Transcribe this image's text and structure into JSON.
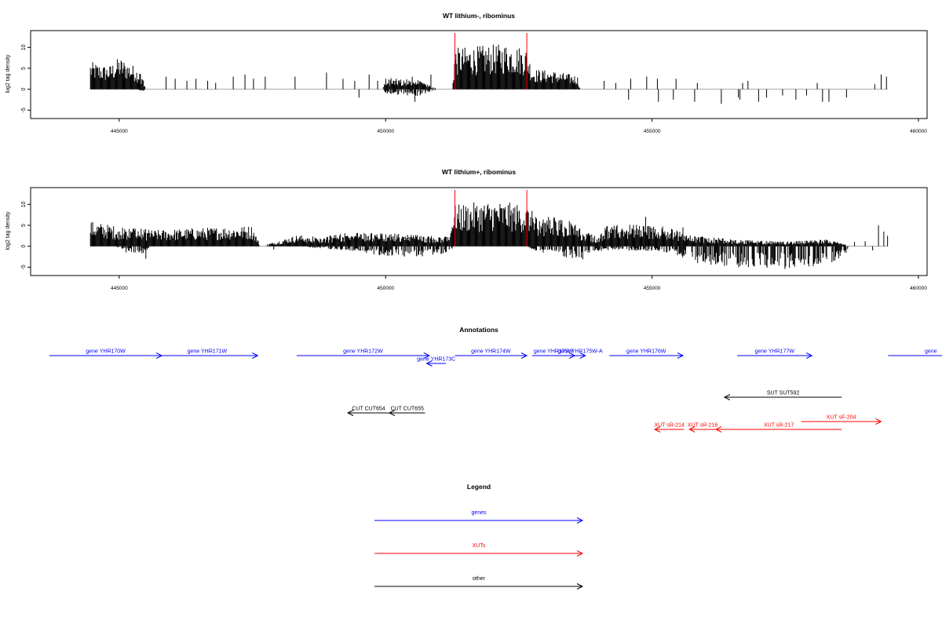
{
  "chart_data": [
    {
      "type": "bar",
      "title": "WT lithium-, ribominus",
      "ylabel": "log2 tag density",
      "xlim": [
        444000,
        460000
      ],
      "ylim": [
        -7,
        14
      ],
      "x_ticks": [
        {
          "value": 445000,
          "label": "445000"
        },
        {
          "value": 450000,
          "label": "450000"
        },
        {
          "value": 455000,
          "label": "455000"
        },
        {
          "value": 460000,
          "label": "460000"
        }
      ],
      "y_ticks": [
        {
          "value": -5,
          "label": "-5"
        },
        {
          "value": 0,
          "label": "0"
        },
        {
          "value": 5,
          "label": "5"
        },
        {
          "value": 10,
          "label": "10"
        }
      ],
      "marker_lines": [
        451300,
        452650
      ],
      "density_profile": [
        {
          "x": 444460,
          "pos": 6.0,
          "neg": 0
        },
        {
          "x": 444800,
          "pos": 5.0,
          "neg": 0
        },
        {
          "x": 445000,
          "pos": 7.0,
          "neg": 0
        },
        {
          "x": 445300,
          "pos": 5.0,
          "neg": 0
        },
        {
          "x": 445450,
          "pos": 3.0,
          "neg": -0.5
        },
        {
          "x": 445500,
          "pos": 0,
          "neg": 0
        },
        {
          "x": 449950,
          "pos": 0,
          "neg": 0
        },
        {
          "x": 450000,
          "pos": 2.5,
          "neg": -1.0
        },
        {
          "x": 450600,
          "pos": 2.0,
          "neg": -1.5
        },
        {
          "x": 451000,
          "pos": 0,
          "neg": 0
        },
        {
          "x": 451250,
          "pos": 0,
          "neg": 0
        },
        {
          "x": 451300,
          "pos": 9.0,
          "neg": 0
        },
        {
          "x": 451800,
          "pos": 9.5,
          "neg": 0
        },
        {
          "x": 452300,
          "pos": 10.0,
          "neg": 0
        },
        {
          "x": 452650,
          "pos": 9.0,
          "neg": 0
        },
        {
          "x": 452750,
          "pos": 4.5,
          "neg": 0
        },
        {
          "x": 453150,
          "pos": 4.0,
          "neg": 0
        },
        {
          "x": 453600,
          "pos": 3.0,
          "neg": 0
        },
        {
          "x": 453650,
          "pos": 0,
          "neg": 0
        }
      ],
      "sparse_bars": [
        [
          445880,
          3.0
        ],
        [
          446050,
          2.5
        ],
        [
          446270,
          2.0
        ],
        [
          446440,
          2.5
        ],
        [
          446660,
          2.0
        ],
        [
          446810,
          1.5
        ],
        [
          447140,
          3.0
        ],
        [
          447360,
          3.5
        ],
        [
          447520,
          2.5
        ],
        [
          447740,
          3.0
        ],
        [
          448300,
          3.0
        ],
        [
          448890,
          4.0
        ],
        [
          449200,
          2.5
        ],
        [
          449420,
          2.0
        ],
        [
          449690,
          3.5
        ],
        [
          449850,
          2.0
        ],
        [
          450200,
          2.5
        ],
        [
          450500,
          3.0
        ],
        [
          450850,
          3.5
        ],
        [
          454100,
          2.0
        ],
        [
          454320,
          1.5
        ],
        [
          454600,
          2.5
        ],
        [
          454900,
          3.0
        ],
        [
          455100,
          2.5
        ],
        [
          455450,
          2.5
        ],
        [
          455850,
          1.5
        ],
        [
          456700,
          1.5
        ],
        [
          456800,
          2.0
        ],
        [
          458100,
          1.5
        ],
        [
          459300,
          3.5
        ],
        [
          459400,
          3.0
        ],
        [
          459180,
          1.2
        ],
        [
          450550,
          -3.0
        ],
        [
          454560,
          -2.5
        ],
        [
          455120,
          -3.0
        ],
        [
          455400,
          -2.5
        ],
        [
          455800,
          -3.0
        ],
        [
          456300,
          -3.5
        ],
        [
          456620,
          -2.0
        ],
        [
          456650,
          -2.5
        ],
        [
          457000,
          -3.0
        ],
        [
          457150,
          -2.0
        ],
        [
          457450,
          -1.5
        ],
        [
          457700,
          -2.5
        ],
        [
          457900,
          -1.5
        ],
        [
          458200,
          -3.0
        ],
        [
          458320,
          -3.0
        ],
        [
          458650,
          -2.0
        ],
        [
          449500,
          -2.0
        ]
      ]
    },
    {
      "type": "bar",
      "title": "WT lithium+, ribominus",
      "ylabel": "log2 tag density",
      "xlim": [
        444000,
        460000
      ],
      "ylim": [
        -7,
        14
      ],
      "x_ticks": [
        {
          "value": 445000,
          "label": "445000"
        },
        {
          "value": 450000,
          "label": "450000"
        },
        {
          "value": 455000,
          "label": "455000"
        },
        {
          "value": 460000,
          "label": "460000"
        }
      ],
      "y_ticks": [
        {
          "value": -5,
          "label": "-5"
        },
        {
          "value": 0,
          "label": "0"
        },
        {
          "value": 5,
          "label": "5"
        },
        {
          "value": 10,
          "label": "10"
        }
      ],
      "marker_lines": [
        451300,
        452650
      ],
      "density_profile": [
        {
          "x": 444460,
          "pos": 5.5,
          "neg": 0
        },
        {
          "x": 444900,
          "pos": 4.5,
          "neg": 0
        },
        {
          "x": 445400,
          "pos": 4.0,
          "neg": -2.0
        },
        {
          "x": 445600,
          "pos": 3.5,
          "neg": 0
        },
        {
          "x": 446500,
          "pos": 4.0,
          "neg": 0
        },
        {
          "x": 447500,
          "pos": 4.5,
          "neg": 0
        },
        {
          "x": 447650,
          "pos": 0,
          "neg": 0
        },
        {
          "x": 448350,
          "pos": 2.5,
          "neg": 0
        },
        {
          "x": 448800,
          "pos": 2.0,
          "neg": -0.5
        },
        {
          "x": 449300,
          "pos": 3.0,
          "neg": -1.0
        },
        {
          "x": 449900,
          "pos": 3.0,
          "neg": -2.0
        },
        {
          "x": 450600,
          "pos": 2.5,
          "neg": -2.5
        },
        {
          "x": 451200,
          "pos": 2.0,
          "neg": -1.5
        },
        {
          "x": 451300,
          "pos": 9.0,
          "neg": 0
        },
        {
          "x": 452000,
          "pos": 10.0,
          "neg": 0
        },
        {
          "x": 452650,
          "pos": 9.0,
          "neg": 0
        },
        {
          "x": 452800,
          "pos": 7.0,
          "neg": -1.0
        },
        {
          "x": 453400,
          "pos": 6.0,
          "neg": -2.5
        },
        {
          "x": 453700,
          "pos": 3.5,
          "neg": -3.0
        },
        {
          "x": 454000,
          "pos": 2.0,
          "neg": -1.0
        },
        {
          "x": 454150,
          "pos": 4.5,
          "neg": -1.0
        },
        {
          "x": 454800,
          "pos": 5.0,
          "neg": -1.0
        },
        {
          "x": 455400,
          "pos": 4.0,
          "neg": -1.5
        },
        {
          "x": 455700,
          "pos": 2.5,
          "neg": -3.5
        },
        {
          "x": 456500,
          "pos": 1.5,
          "neg": -4.5
        },
        {
          "x": 457500,
          "pos": 1.0,
          "neg": -5.0
        },
        {
          "x": 458300,
          "pos": 1.5,
          "neg": -4.0
        },
        {
          "x": 458600,
          "pos": 0.5,
          "neg": -2.5
        },
        {
          "x": 458700,
          "pos": 0,
          "neg": 0
        }
      ],
      "sparse_bars": [
        [
          445130,
          -1.5
        ],
        [
          445500,
          -3.0
        ],
        [
          447900,
          -0.8
        ],
        [
          459140,
          -1.0
        ],
        [
          459250,
          5.0
        ],
        [
          459350,
          3.5
        ],
        [
          459420,
          2.5
        ],
        [
          454880,
          7.0
        ],
        [
          455580,
          4.5
        ],
        [
          458800,
          1.0
        ],
        [
          459000,
          1.2
        ]
      ]
    }
  ],
  "annotations": {
    "title": "Annotations",
    "xlim": [
      444000,
      460000
    ],
    "tracks": [
      {
        "label": "gene YHR170W",
        "x0": 443690,
        "x1": 445800,
        "row": "gene",
        "dir": "right",
        "color": "#0000ff"
      },
      {
        "label": "gene YHR171W",
        "x0": 445700,
        "x1": 447600,
        "row": "gene",
        "dir": "right",
        "color": "#0000ff"
      },
      {
        "label": "gene YHR172W",
        "x0": 448330,
        "x1": 450820,
        "row": "gene",
        "dir": "right",
        "color": "#0000ff"
      },
      {
        "label": "gene YHR173C",
        "x0": 450770,
        "x1": 451130,
        "row": "gene-low",
        "dir": "left",
        "color": "#0000ff"
      },
      {
        "label": "gene YHR174W",
        "x0": 451300,
        "x1": 452650,
        "row": "gene",
        "dir": "right",
        "color": "#0000ff"
      },
      {
        "label": "gene YHR175W",
        "x0": 452750,
        "x1": 453550,
        "row": "gene",
        "dir": "right",
        "color": "#0000ff"
      },
      {
        "label": "gene YHR175W-A",
        "x0": 453550,
        "x1": 453750,
        "row": "gene",
        "dir": "right",
        "color": "#0000ff"
      },
      {
        "label": "gene YHR176W",
        "x0": 454200,
        "x1": 455580,
        "row": "gene",
        "dir": "right",
        "color": "#0000ff"
      },
      {
        "label": "gene YHR177W",
        "x0": 456600,
        "x1": 458000,
        "row": "gene",
        "dir": "right",
        "color": "#0000ff"
      },
      {
        "label": "gene",
        "x0": 459430,
        "x1": 460850,
        "row": "gene",
        "dir": "right",
        "color": "#0000ff"
      },
      {
        "label": "SUT SUT592",
        "x0": 456360,
        "x1": 458560,
        "row": "sut",
        "dir": "left",
        "color": "#000000"
      },
      {
        "label": "CUT CUT654",
        "x0": 449290,
        "x1": 450070,
        "row": "cut",
        "dir": "left",
        "color": "#000000"
      },
      {
        "label": "CUT CUT655",
        "x0": 450070,
        "x1": 450740,
        "row": "cut",
        "dir": "left",
        "color": "#000000"
      },
      {
        "label": "XUT sF-204",
        "x0": 457800,
        "x1": 459300,
        "row": "xut-high",
        "dir": "right",
        "color": "#ff0000"
      },
      {
        "label": "XUT sR-214",
        "x0": 455050,
        "x1": 455600,
        "row": "xut",
        "dir": "left",
        "color": "#ff0000"
      },
      {
        "label": "XUT sR-216",
        "x0": 455700,
        "x1": 456200,
        "row": "xut",
        "dir": "left",
        "color": "#ff0000"
      },
      {
        "label": "XUT sR-217",
        "x0": 456200,
        "x1": 458560,
        "row": "xut",
        "dir": "left",
        "color": "#ff0000"
      }
    ]
  },
  "legend": {
    "title": "Legend",
    "items": [
      {
        "label": "genes",
        "color": "#0000ff"
      },
      {
        "label": "XUTs",
        "color": "#ff0000"
      },
      {
        "label": "other",
        "color": "#000000"
      }
    ]
  }
}
